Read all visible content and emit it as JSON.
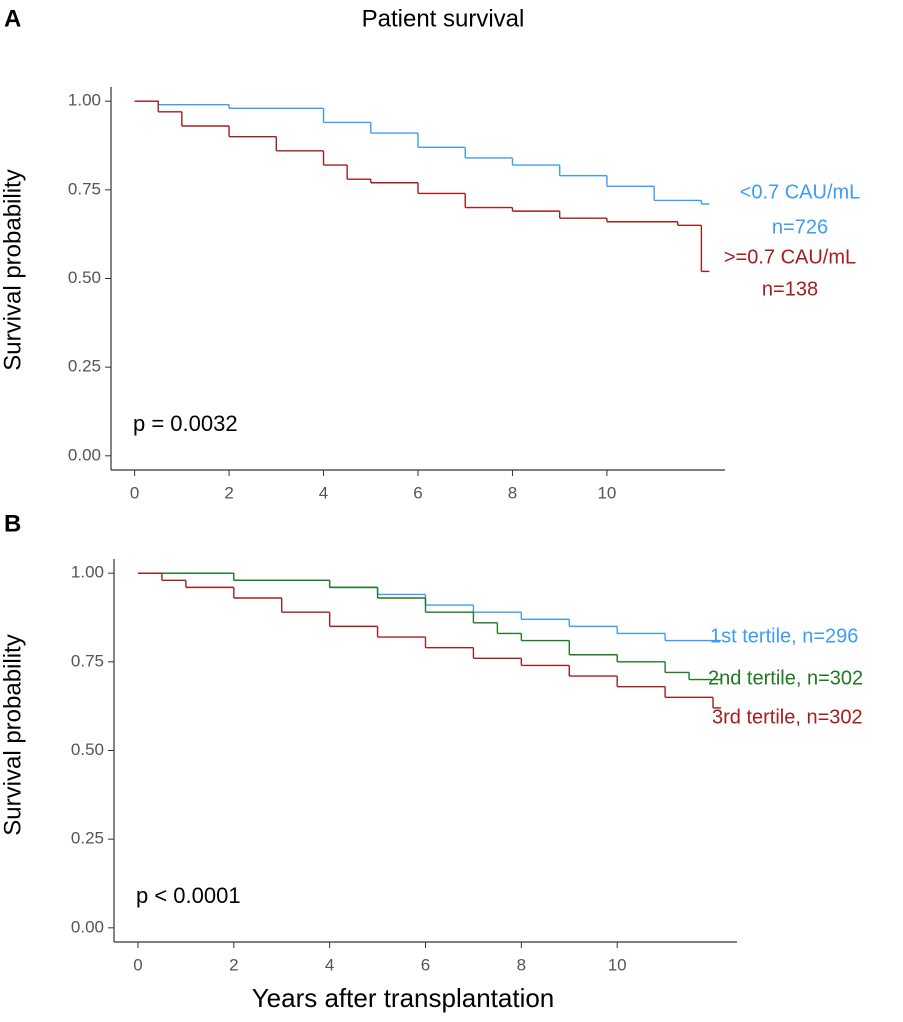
{
  "chart_data": [
    {
      "type": "line",
      "panel": "A",
      "title": "Patient survival",
      "y_label": "Survival probability",
      "annotation": "p = 0.0032",
      "xlim": [
        -0.5,
        12.5
      ],
      "ylim": [
        -0.04,
        1.04
      ],
      "xticks": [
        0,
        2,
        4,
        6,
        8,
        10
      ],
      "yticks": [
        {
          "value": 0,
          "label": "0.00"
        },
        {
          "value": 0.25,
          "label": "0.25"
        },
        {
          "value": 0.5,
          "label": "0.50"
        },
        {
          "value": 0.75,
          "label": "0.75"
        },
        {
          "value": 1,
          "label": "1.00"
        }
      ],
      "series": [
        {
          "name": "<0.7 CAU/mL",
          "n_label": "n=726",
          "color": "#3d9cf5",
          "x": [
            0,
            0.5,
            2,
            4,
            5,
            6,
            7,
            8,
            9,
            10,
            11,
            12
          ],
          "values": [
            1.0,
            0.99,
            0.98,
            0.94,
            0.91,
            0.87,
            0.84,
            0.82,
            0.79,
            0.76,
            0.72,
            0.71
          ]
        },
        {
          "name": ">=0.7 CAU/mL",
          "n_label": "n=138",
          "color": "#a51d1d",
          "x": [
            0,
            0.5,
            1,
            2,
            3,
            4,
            4.5,
            5,
            6,
            7,
            8,
            9,
            10,
            11.5,
            12
          ],
          "values": [
            1.0,
            0.97,
            0.93,
            0.9,
            0.86,
            0.82,
            0.78,
            0.77,
            0.74,
            0.7,
            0.69,
            0.67,
            0.66,
            0.65,
            0.52
          ]
        }
      ]
    },
    {
      "type": "line",
      "panel": "B",
      "y_label": "Survival probability",
      "x_label": "Years after transplantation",
      "annotation": "p < 0.0001",
      "xlim": [
        -0.5,
        12.5
      ],
      "ylim": [
        -0.04,
        1.04
      ],
      "xticks": [
        0,
        2,
        4,
        6,
        8,
        10
      ],
      "yticks": [
        {
          "value": 0,
          "label": "0.00"
        },
        {
          "value": 0.25,
          "label": "0.25"
        },
        {
          "value": 0.5,
          "label": "0.50"
        },
        {
          "value": 0.75,
          "label": "0.75"
        },
        {
          "value": 1,
          "label": "1.00"
        }
      ],
      "series": [
        {
          "name": "1st tertile, n=296",
          "color": "#3d9cf5",
          "x": [
            0,
            0.5,
            2,
            4,
            5,
            6,
            7,
            8,
            9,
            10,
            11,
            12
          ],
          "values": [
            1.0,
            1.0,
            0.98,
            0.96,
            0.94,
            0.91,
            0.89,
            0.87,
            0.85,
            0.83,
            0.81,
            0.81
          ]
        },
        {
          "name": "2nd tertile, n=302",
          "color": "#1e7a1e",
          "x": [
            0,
            0.5,
            2,
            4,
            5,
            6,
            7,
            7.5,
            8,
            9,
            10,
            11,
            11.5,
            12
          ],
          "values": [
            1.0,
            1.0,
            0.98,
            0.96,
            0.93,
            0.89,
            0.86,
            0.83,
            0.81,
            0.77,
            0.75,
            0.72,
            0.7,
            0.7
          ]
        },
        {
          "name": "3rd tertile, n=302",
          "color": "#a51d1d",
          "x": [
            0,
            0.5,
            1,
            2,
            3,
            4,
            5,
            6,
            7,
            8,
            9,
            10,
            11,
            12
          ],
          "values": [
            1.0,
            0.98,
            0.96,
            0.93,
            0.89,
            0.85,
            0.82,
            0.79,
            0.76,
            0.74,
            0.71,
            0.68,
            0.65,
            0.62
          ]
        }
      ]
    }
  ]
}
